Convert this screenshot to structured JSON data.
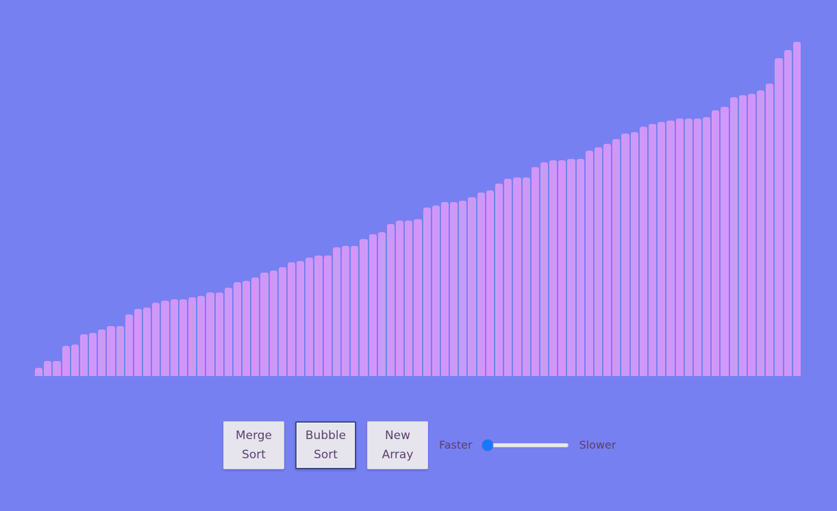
{
  "chart_data": {
    "type": "bar",
    "values": [
      5,
      9,
      9,
      18,
      19,
      25,
      26,
      28,
      30,
      30,
      37,
      40,
      41,
      44,
      45,
      46,
      46,
      47,
      48,
      50,
      50,
      53,
      56,
      57,
      59,
      62,
      63,
      65,
      68,
      69,
      71,
      72,
      72,
      77,
      78,
      78,
      82,
      85,
      86,
      91,
      93,
      93,
      94,
      101,
      102,
      104,
      104,
      105,
      107,
      110,
      111,
      115,
      118,
      119,
      119,
      125,
      128,
      129,
      129,
      130,
      130,
      135,
      137,
      139,
      142,
      145,
      146,
      149,
      151,
      152,
      153,
      154,
      154,
      154,
      155,
      159,
      161,
      167,
      168,
      169,
      171,
      175,
      190,
      195,
      200
    ],
    "ylim": [
      0,
      200
    ],
    "bar_color": "#cf98f8",
    "background_color": "#7780f0"
  },
  "controls": {
    "merge_sort_label": "Merge Sort",
    "bubble_sort_label": "Bubble Sort",
    "new_array_label": "New Array",
    "faster_label": "Faster",
    "slower_label": "Slower",
    "speed_slider_value": 0
  }
}
